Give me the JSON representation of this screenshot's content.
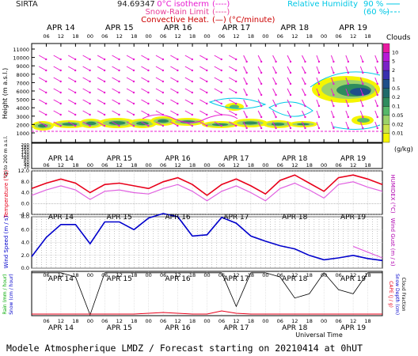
{
  "header": {
    "site": "SIRTA",
    "coord": "94.69347",
    "legend_left": [
      {
        "label": "0°C isotherm",
        "sample": "(----)",
        "color": "#e81ad0"
      },
      {
        "label": "Snow-Rain Limit",
        "sample": "(----)",
        "color": "#e8409a"
      },
      {
        "label": "Convective Heat.",
        "sample": "(—) (°C/minute)",
        "color": "#cc0000"
      }
    ],
    "legend_right": [
      {
        "label": "Relative Humidity",
        "v1": "90 %",
        "v2": "(60 %)",
        "color": "#00c8e6"
      }
    ]
  },
  "days": [
    "APR 14",
    "APR 15",
    "APR 16",
    "APR 17",
    "APR 18",
    "APR 19"
  ],
  "hours": [
    "06",
    "12",
    "18",
    "00"
  ],
  "cloud_legend": {
    "title": "Clouds",
    "unit": "(g/kg)",
    "levels": [
      "0.01",
      "0.02",
      "0.05",
      "0.1",
      "0.2",
      "0.5",
      "1",
      "2",
      "5",
      "10"
    ],
    "colors": [
      "#f5f500",
      "#cbe34d",
      "#9bd26a",
      "#56b86a",
      "#2e8c5e",
      "#1f6b6b",
      "#1d4f8a",
      "#3a2fb0",
      "#7a22c8",
      "#b81ad8",
      "#e81aa0"
    ]
  },
  "cloud_panel": {
    "ylabel": "Height (m a.s.l.)",
    "ylabel2": "Up to 200 m a.s.l.",
    "upper_ticks": [
      "11000",
      "10000",
      "9000",
      "8000",
      "7000",
      "6000",
      "5000",
      "4000",
      "3000",
      "2000",
      "1000"
    ],
    "lower_ticks": [
      "200",
      "180",
      "160",
      "140",
      "120",
      "100",
      "80",
      "60",
      "40",
      "20"
    ]
  },
  "temp_panel": {
    "ylabel": "Temperature (°C)",
    "ylabel_r": "HUMIDEX (°C)",
    "ticks": [
      "12.0",
      "8.0",
      "4.0",
      "0.0",
      "-4.0"
    ]
  },
  "wind_panel": {
    "ylabel": "Wind Speed (m / s)",
    "ylabel_r": "Wind Gust (m / s)",
    "ticks": [
      "8.0",
      "6.0",
      "4.0",
      "2.0",
      "0.0"
    ]
  },
  "precip_panel": {
    "ylabel": "Rain (mm / hour)",
    "ylabel2": "Snow (cm / hour)",
    "ylabel_r": "CAPE (J / g)",
    "ylabel_r2": "Snow Depth (cm)",
    "ylabel_r3": "Cloud Fraction",
    "xlabel": "Universal Time"
  },
  "footer": "Modele Atmospherique LMDZ / Forecast starting on 20210414 at 0hUT",
  "chart_data": {
    "type": "line",
    "x_hours": [
      0,
      6,
      12,
      18,
      24,
      30,
      36,
      42,
      48,
      54,
      60,
      66,
      72,
      78,
      84,
      90,
      96,
      102,
      108,
      114,
      120,
      126,
      132,
      138,
      144
    ],
    "temperature": [
      5.5,
      7.5,
      9.0,
      7.5,
      4.0,
      7.0,
      7.5,
      6.5,
      5.5,
      8.0,
      9.5,
      7.0,
      3.0,
      7.0,
      9.0,
      6.5,
      3.5,
      8.5,
      10.5,
      7.5,
      4.5,
      9.5,
      10.5,
      9.0,
      7.0
    ],
    "humidex": [
      3.0,
      5.0,
      6.5,
      5.0,
      1.5,
      4.5,
      5.0,
      4.0,
      3.5,
      5.5,
      7.0,
      4.5,
      1.0,
      4.5,
      6.5,
      4.0,
      1.0,
      5.5,
      7.5,
      5.0,
      2.0,
      7.0,
      8.0,
      6.0,
      4.5
    ],
    "wind_speed": [
      1.8,
      4.8,
      6.8,
      6.8,
      3.8,
      7.2,
      7.2,
      6.0,
      7.8,
      8.5,
      8.0,
      5.0,
      5.2,
      7.9,
      7.0,
      5.0,
      4.2,
      3.5,
      3.0,
      2.0,
      1.3,
      1.6,
      2.0,
      1.5,
      1.2
    ],
    "wind_gust": [
      null,
      null,
      null,
      null,
      null,
      null,
      null,
      null,
      null,
      null,
      null,
      null,
      null,
      null,
      null,
      null,
      null,
      null,
      null,
      null,
      null,
      null,
      3.4,
      2.5,
      1.6
    ],
    "cloud_fraction": [
      1.0,
      1.0,
      1.0,
      0.9,
      0.0,
      1.0,
      1.0,
      1.0,
      1.0,
      1.0,
      1.0,
      1.0,
      1.0,
      1.0,
      0.2,
      1.0,
      1.0,
      0.9,
      0.4,
      0.5,
      1.0,
      0.6,
      0.5,
      1.0,
      1.0
    ],
    "rain": [
      0,
      0,
      0,
      0,
      0,
      0,
      0,
      0,
      0.05,
      0.1,
      0.05,
      0,
      0,
      0.2,
      0.05,
      0,
      0,
      0,
      0,
      0,
      0,
      0,
      0,
      0,
      0
    ],
    "temp_ylim": [
      -4,
      12
    ],
    "wind_ylim": [
      0,
      8
    ]
  }
}
